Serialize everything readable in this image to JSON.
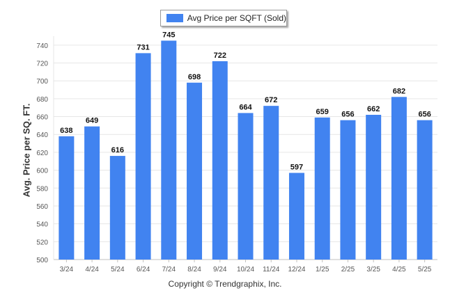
{
  "chart_data": {
    "type": "bar",
    "categories": [
      "3/24",
      "4/24",
      "5/24",
      "6/24",
      "7/24",
      "8/24",
      "9/24",
      "10/24",
      "11/24",
      "12/24",
      "1/25",
      "2/25",
      "3/25",
      "4/25",
      "5/25"
    ],
    "series": [
      {
        "name": "Avg Price per SQFT (Sold)",
        "values": [
          638,
          649,
          616,
          731,
          745,
          698,
          722,
          664,
          672,
          597,
          659,
          656,
          662,
          682,
          656
        ]
      }
    ],
    "ylabel": "Avg. Price per SQ. FT.",
    "xlabel": "",
    "ylim": [
      500,
      750
    ],
    "yticks": [
      500,
      520,
      540,
      560,
      580,
      600,
      620,
      640,
      660,
      680,
      700,
      720,
      740
    ],
    "grid": true,
    "legend_position": "top-center",
    "colors": {
      "bar": "#4183f0",
      "grid": "#e6e6e6",
      "axis": "#c0c0c0"
    }
  },
  "footer": {
    "copyright": "Copyright © Trendgraphix, Inc."
  }
}
